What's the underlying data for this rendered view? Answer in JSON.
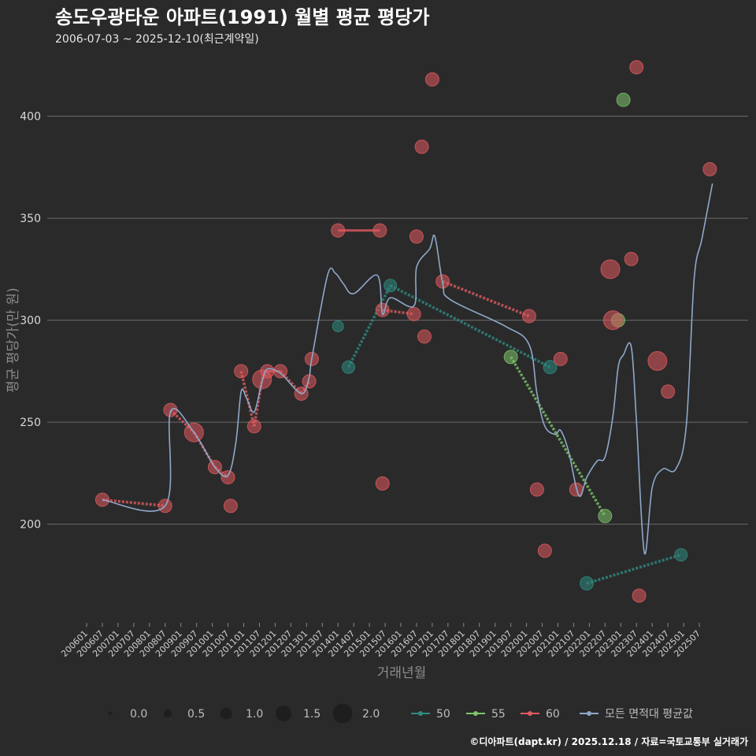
{
  "header": {
    "title": "송도우광타운 아파트(1991) 월별 평균 평당가",
    "subtitle": "2006-07-03 ~ 2025-12-10(최근계약일)"
  },
  "caption": "©디아파트(dapt.kr) / 2025.12.18 / 자료=국토교통부 실거래가",
  "chart_data": {
    "type": "scatter",
    "title": "송도우광타운 아파트(1991) 월별 평균 평당가",
    "xlabel": "거래년월",
    "ylabel": "평균 평당가(만 원)",
    "ylim": [
      152,
      428
    ],
    "yticks": [
      200,
      250,
      300,
      350,
      400
    ],
    "x_start": "2006-01",
    "x_end": "2026-01",
    "xticks": [
      "200601",
      "200607",
      "200701",
      "200707",
      "200801",
      "200807",
      "200901",
      "200907",
      "201001",
      "201007",
      "201101",
      "201107",
      "201201",
      "201207",
      "201301",
      "201307",
      "201401",
      "201407",
      "201501",
      "201507",
      "201601",
      "201607",
      "201701",
      "201707",
      "201801",
      "201807",
      "201901",
      "201907",
      "202001",
      "202007",
      "202101",
      "202107",
      "202201",
      "202207",
      "202301",
      "202307",
      "202401",
      "202407",
      "202501",
      "202507"
    ],
    "colors": {
      "50": "#2e8b7f",
      "55": "#7ec46a",
      "60": "#e05a5e",
      "avg": "#8fa8c8"
    },
    "series": [
      {
        "name": "50",
        "points": [
          {
            "x": "2014-01",
            "y": 297,
            "size": 1.0
          },
          {
            "x": "2014-05",
            "y": 277,
            "size": 1.2
          },
          {
            "x": "2015-09",
            "y": 317,
            "size": 1.2
          },
          {
            "x": "2020-10",
            "y": 277,
            "size": 1.3
          },
          {
            "x": "2021-12",
            "y": 171,
            "size": 1.3
          },
          {
            "x": "2024-12",
            "y": 185,
            "size": 1.2
          }
        ],
        "connect": [
          [
            1,
            2
          ],
          [
            2,
            3
          ],
          [
            4,
            5
          ]
        ]
      },
      {
        "name": "55",
        "points": [
          {
            "x": "2019-07",
            "y": 282,
            "size": 1.3
          },
          {
            "x": "2022-07",
            "y": 204,
            "size": 1.3
          },
          {
            "x": "2022-12",
            "y": 300,
            "size": 1.3
          },
          {
            "x": "2023-02",
            "y": 408,
            "size": 1.3
          }
        ],
        "connect": [
          [
            0,
            1
          ]
        ]
      },
      {
        "name": "60",
        "points": [
          {
            "x": "2006-07",
            "y": 212,
            "size": 1.3
          },
          {
            "x": "2008-07",
            "y": 209,
            "size": 1.3
          },
          {
            "x": "2008-09",
            "y": 256,
            "size": 1.3
          },
          {
            "x": "2009-06",
            "y": 245,
            "size": 2.0
          },
          {
            "x": "2010-02",
            "y": 228,
            "size": 1.3
          },
          {
            "x": "2010-07",
            "y": 223,
            "size": 1.3
          },
          {
            "x": "2010-08",
            "y": 209,
            "size": 1.3
          },
          {
            "x": "2010-12",
            "y": 275,
            "size": 1.3
          },
          {
            "x": "2011-05",
            "y": 248,
            "size": 1.3
          },
          {
            "x": "2011-08",
            "y": 271,
            "size": 2.0
          },
          {
            "x": "2011-10",
            "y": 275,
            "size": 1.3
          },
          {
            "x": "2012-03",
            "y": 275,
            "size": 1.3
          },
          {
            "x": "2012-11",
            "y": 264,
            "size": 1.3
          },
          {
            "x": "2013-02",
            "y": 270,
            "size": 1.3
          },
          {
            "x": "2013-03",
            "y": 281,
            "size": 1.3
          },
          {
            "x": "2014-01",
            "y": 344,
            "size": 1.3
          },
          {
            "x": "2015-05",
            "y": 344,
            "size": 1.3
          },
          {
            "x": "2015-06",
            "y": 220,
            "size": 1.3
          },
          {
            "x": "2015-06",
            "y": 305,
            "size": 1.3
          },
          {
            "x": "2016-06",
            "y": 303,
            "size": 1.3
          },
          {
            "x": "2016-07",
            "y": 341,
            "size": 1.3
          },
          {
            "x": "2016-09",
            "y": 385,
            "size": 1.3
          },
          {
            "x": "2016-10",
            "y": 292,
            "size": 1.3
          },
          {
            "x": "2017-01",
            "y": 418,
            "size": 1.3
          },
          {
            "x": "2017-05",
            "y": 319,
            "size": 1.3
          },
          {
            "x": "2020-02",
            "y": 302,
            "size": 1.3
          },
          {
            "x": "2020-05",
            "y": 217,
            "size": 1.3
          },
          {
            "x": "2020-08",
            "y": 187,
            "size": 1.3
          },
          {
            "x": "2021-02",
            "y": 281,
            "size": 1.3
          },
          {
            "x": "2021-08",
            "y": 217,
            "size": 1.3
          },
          {
            "x": "2022-09",
            "y": 325,
            "size": 2.0
          },
          {
            "x": "2022-10",
            "y": 300,
            "size": 2.0
          },
          {
            "x": "2023-05",
            "y": 330,
            "size": 1.3
          },
          {
            "x": "2023-07",
            "y": 424,
            "size": 1.3
          },
          {
            "x": "2023-08",
            "y": 165,
            "size": 1.3
          },
          {
            "x": "2024-03",
            "y": 280,
            "size": 2.0
          },
          {
            "x": "2024-07",
            "y": 265,
            "size": 1.3
          },
          {
            "x": "2025-11",
            "y": 374,
            "size": 1.3
          }
        ],
        "connect": [
          [
            0,
            1
          ],
          [
            2,
            3
          ],
          [
            3,
            4
          ],
          [
            4,
            5
          ],
          [
            7,
            8
          ],
          [
            8,
            9
          ],
          [
            9,
            10
          ],
          [
            10,
            11
          ],
          [
            11,
            12
          ],
          [
            12,
            13
          ],
          [
            15,
            16
          ],
          [
            18,
            19
          ],
          [
            24,
            25
          ]
        ]
      }
    ],
    "avg_line": [
      {
        "x": "2006-07",
        "y": 212
      },
      {
        "x": "2008-07",
        "y": 209
      },
      {
        "x": "2008-09",
        "y": 255
      },
      {
        "x": "2009-06",
        "y": 245
      },
      {
        "x": "2010-02",
        "y": 228
      },
      {
        "x": "2010-07",
        "y": 224
      },
      {
        "x": "2010-10",
        "y": 240
      },
      {
        "x": "2010-12",
        "y": 265
      },
      {
        "x": "2011-02",
        "y": 262
      },
      {
        "x": "2011-05",
        "y": 255
      },
      {
        "x": "2011-08",
        "y": 270
      },
      {
        "x": "2011-10",
        "y": 276
      },
      {
        "x": "2012-03",
        "y": 274
      },
      {
        "x": "2012-11",
        "y": 264
      },
      {
        "x": "2013-02",
        "y": 272
      },
      {
        "x": "2013-03",
        "y": 281
      },
      {
        "x": "2013-09",
        "y": 322
      },
      {
        "x": "2013-12",
        "y": 323
      },
      {
        "x": "2014-03",
        "y": 318
      },
      {
        "x": "2014-07",
        "y": 313
      },
      {
        "x": "2015-04",
        "y": 322
      },
      {
        "x": "2015-06",
        "y": 303
      },
      {
        "x": "2015-09",
        "y": 311
      },
      {
        "x": "2016-06",
        "y": 307
      },
      {
        "x": "2016-07",
        "y": 326
      },
      {
        "x": "2016-12",
        "y": 335
      },
      {
        "x": "2017-02",
        "y": 341
      },
      {
        "x": "2017-05",
        "y": 318
      },
      {
        "x": "2017-08",
        "y": 310
      },
      {
        "x": "2019-05",
        "y": 297
      },
      {
        "x": "2020-02",
        "y": 288
      },
      {
        "x": "2020-05",
        "y": 264
      },
      {
        "x": "2020-08",
        "y": 248
      },
      {
        "x": "2020-12",
        "y": 244
      },
      {
        "x": "2021-02",
        "y": 246
      },
      {
        "x": "2021-05",
        "y": 236
      },
      {
        "x": "2021-09",
        "y": 214
      },
      {
        "x": "2021-12",
        "y": 223
      },
      {
        "x": "2022-04",
        "y": 231
      },
      {
        "x": "2022-07",
        "y": 233
      },
      {
        "x": "2022-10",
        "y": 253
      },
      {
        "x": "2022-12",
        "y": 277
      },
      {
        "x": "2023-02",
        "y": 283
      },
      {
        "x": "2023-05",
        "y": 287
      },
      {
        "x": "2023-07",
        "y": 250
      },
      {
        "x": "2023-10",
        "y": 186
      },
      {
        "x": "2024-01",
        "y": 218
      },
      {
        "x": "2024-05",
        "y": 227
      },
      {
        "x": "2024-10",
        "y": 227
      },
      {
        "x": "2025-02",
        "y": 248
      },
      {
        "x": "2025-05",
        "y": 320
      },
      {
        "x": "2025-08",
        "y": 340
      },
      {
        "x": "2025-12",
        "y": 367
      }
    ],
    "legend_size": {
      "values": [
        0.0,
        0.5,
        1.0,
        1.5,
        2.0
      ],
      "labels": [
        "0.0",
        "0.5",
        "1.0",
        "1.5",
        "2.0"
      ]
    },
    "legend_color": {
      "labels": [
        "50",
        "55",
        "60",
        "모든 면적대 평균값"
      ]
    }
  }
}
